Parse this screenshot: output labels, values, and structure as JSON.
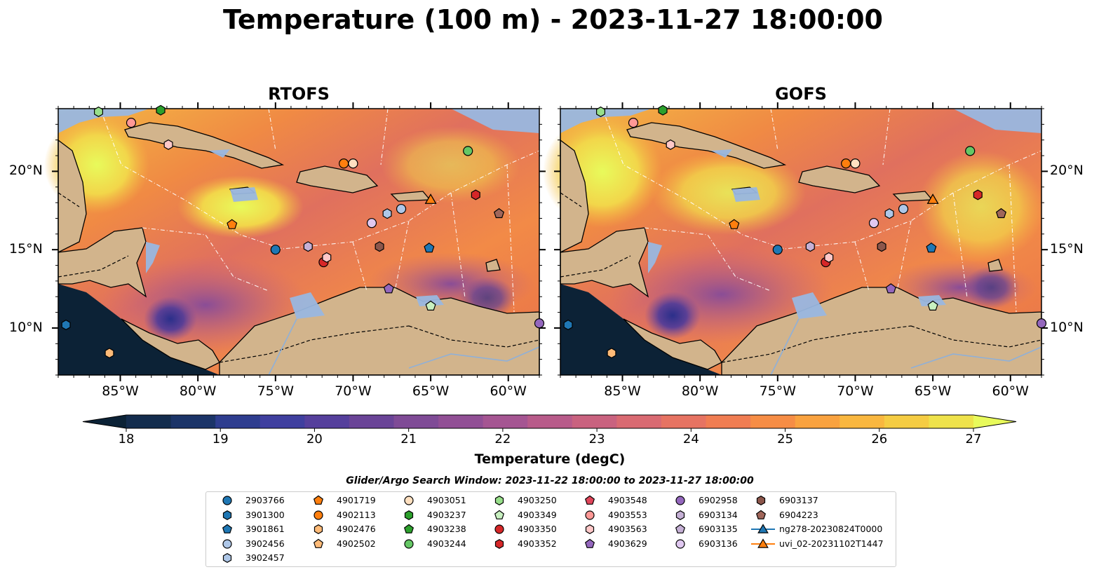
{
  "title": "Temperature (100 m) - 2023-11-27 18:00:00",
  "panels": [
    {
      "title": "RTOFS"
    },
    {
      "title": "GOFS"
    }
  ],
  "lon_ticks": [
    "85°W",
    "80°W",
    "75°W",
    "70°W",
    "65°W",
    "60°W"
  ],
  "lat_ticks": [
    "20°N",
    "15°N",
    "10°N"
  ],
  "map_extent": {
    "lon": [
      -89,
      -58
    ],
    "lat": [
      7,
      24
    ]
  },
  "colorbar": {
    "label": "Temperature (degC)",
    "ticks": [
      "18",
      "19",
      "20",
      "21",
      "22",
      "23",
      "24",
      "25",
      "26",
      "27"
    ],
    "range": [
      18,
      27
    ],
    "extend": "both",
    "colormap": "thermal",
    "colors": [
      "#0b2236",
      "#132c4d",
      "#1b3468",
      "#2e3d8f",
      "#3f3f9f",
      "#553f9c",
      "#6a4497",
      "#7f4b96",
      "#914f95",
      "#a55592",
      "#b85b8a",
      "#c9627f",
      "#d96a72",
      "#e67362",
      "#f07d52",
      "#f68d45",
      "#f9a23f",
      "#f9b73f",
      "#f5cc43",
      "#eee24b",
      "#e8fa5b"
    ]
  },
  "legend": {
    "title": "Glider/Argo Search Window: 2023-11-22 18:00:00 to 2023-11-27 18:00:00",
    "columns": [
      [
        {
          "label": "2903766",
          "marker": "circle",
          "color": "#1f77b4"
        },
        {
          "label": "3901300",
          "marker": "hexagon",
          "color": "#1f77b4"
        },
        {
          "label": "3901861",
          "marker": "pentagon",
          "color": "#1f77b4"
        },
        {
          "label": "3902456",
          "marker": "circle",
          "color": "#aec7e8"
        },
        {
          "label": "3902457",
          "marker": "hexagon",
          "color": "#aec7e8"
        }
      ],
      [
        {
          "label": "4901719",
          "marker": "pentagon",
          "color": "#ff7f0e"
        },
        {
          "label": "4902113",
          "marker": "circle",
          "color": "#ff7f0e"
        },
        {
          "label": "4902476",
          "marker": "hexagon",
          "color": "#ffbb78"
        },
        {
          "label": "4902502",
          "marker": "pentagon",
          "color": "#ffbb78"
        }
      ],
      [
        {
          "label": "4903051",
          "marker": "circle",
          "color": "#ffe0c0"
        },
        {
          "label": "4903237",
          "marker": "hexagon",
          "color": "#2ca02c"
        },
        {
          "label": "4903238",
          "marker": "pentagon",
          "color": "#2ca02c"
        },
        {
          "label": "4903244",
          "marker": "circle",
          "color": "#65c765"
        }
      ],
      [
        {
          "label": "4903250",
          "marker": "hexagon",
          "color": "#98df8a"
        },
        {
          "label": "4903349",
          "marker": "pentagon",
          "color": "#c8f0c0"
        },
        {
          "label": "4903350",
          "marker": "circle",
          "color": "#d62728"
        },
        {
          "label": "4903352",
          "marker": "hexagon",
          "color": "#d62728"
        }
      ],
      [
        {
          "label": "4903548",
          "marker": "pentagon",
          "color": "#e0455a"
        },
        {
          "label": "4903553",
          "marker": "circle",
          "color": "#ff9896"
        },
        {
          "label": "4903563",
          "marker": "hexagon",
          "color": "#ffc8c8"
        },
        {
          "label": "4903629",
          "marker": "pentagon",
          "color": "#9467bd"
        }
      ],
      [
        {
          "label": "6902958",
          "marker": "circle",
          "color": "#9467bd"
        },
        {
          "label": "6903134",
          "marker": "hexagon",
          "color": "#c5b0d5"
        },
        {
          "label": "6903135",
          "marker": "pentagon",
          "color": "#c5b0d5"
        },
        {
          "label": "6903136",
          "marker": "circle",
          "color": "#e0c8f0"
        }
      ],
      [
        {
          "label": "6903137",
          "marker": "hexagon",
          "color": "#8c564b"
        },
        {
          "label": "6904223",
          "marker": "pentagon",
          "color": "#a0665a"
        },
        {
          "label": "ng278-20230824T0000",
          "marker": "triangle-line",
          "color": "#1f77b4"
        },
        {
          "label": "uvi_02-20231102T1447",
          "marker": "triangle-line",
          "color": "#ff7f0e"
        }
      ]
    ]
  },
  "floats": [
    {
      "label": "2903766",
      "marker": "circle",
      "color": "#1f77b4",
      "lon": -75.0,
      "lat": 15.0
    },
    {
      "label": "3901300",
      "marker": "hexagon",
      "color": "#1f77b4",
      "lon": -88.5,
      "lat": 10.2
    },
    {
      "label": "3901861",
      "marker": "pentagon",
      "color": "#1f77b4",
      "lon": -65.1,
      "lat": 15.1
    },
    {
      "label": "3902456",
      "marker": "circle",
      "color": "#aec7e8",
      "lon": -66.9,
      "lat": 17.6
    },
    {
      "label": "3902457",
      "marker": "hexagon",
      "color": "#aec7e8",
      "lon": -67.8,
      "lat": 17.3
    },
    {
      "label": "4901719",
      "marker": "pentagon",
      "color": "#ff7f0e",
      "lon": -77.8,
      "lat": 16.6
    },
    {
      "label": "4902113",
      "marker": "circle",
      "color": "#ff7f0e",
      "lon": -70.6,
      "lat": 20.5
    },
    {
      "label": "4902476",
      "marker": "hexagon",
      "color": "#ffbb78",
      "lon": -85.7,
      "lat": 8.4
    },
    {
      "label": "4903051",
      "marker": "circle",
      "color": "#ffe0c0",
      "lon": -70.0,
      "lat": 20.5
    },
    {
      "label": "4903237",
      "marker": "hexagon",
      "color": "#2ca02c",
      "lon": -82.4,
      "lat": 23.9
    },
    {
      "label": "4903244",
      "marker": "circle",
      "color": "#65c765",
      "lon": -62.6,
      "lat": 21.3
    },
    {
      "label": "4903250",
      "marker": "hexagon",
      "color": "#98df8a",
      "lon": -86.4,
      "lat": 23.8
    },
    {
      "label": "4903349",
      "marker": "pentagon",
      "color": "#c8f0c0",
      "lon": -65.0,
      "lat": 11.4
    },
    {
      "label": "4903350",
      "marker": "circle",
      "color": "#d62728",
      "lon": -71.9,
      "lat": 14.2
    },
    {
      "label": "4903352",
      "marker": "hexagon",
      "color": "#d62728",
      "lon": -62.1,
      "lat": 18.5
    },
    {
      "label": "4903553",
      "marker": "circle",
      "color": "#ff9896",
      "lon": -84.3,
      "lat": 23.1
    },
    {
      "label": "4903563",
      "marker": "hexagon",
      "color": "#ffc8c8",
      "lon": -81.9,
      "lat": 21.7
    },
    {
      "label": "4903563",
      "marker": "hexagon",
      "color": "#ffc8c8",
      "lon": -71.7,
      "lat": 14.5
    },
    {
      "label": "4903629",
      "marker": "pentagon",
      "color": "#9467bd",
      "lon": -67.7,
      "lat": 12.5
    },
    {
      "label": "6902958",
      "marker": "circle",
      "color": "#9467bd",
      "lon": -58.0,
      "lat": 10.3
    },
    {
      "label": "6903134",
      "marker": "hexagon",
      "color": "#c5b0d5",
      "lon": -72.9,
      "lat": 15.2
    },
    {
      "label": "6903136",
      "marker": "circle",
      "color": "#e0c8f0",
      "lon": -68.8,
      "lat": 16.7
    },
    {
      "label": "6903137",
      "marker": "hexagon",
      "color": "#8c564b",
      "lon": -68.3,
      "lat": 15.2
    },
    {
      "label": "6904223",
      "marker": "pentagon",
      "color": "#a0665a",
      "lon": -60.6,
      "lat": 17.3
    },
    {
      "label": "ng278-20230824T0000",
      "marker": "triangle",
      "color": "#1f77b4",
      "lon": -65.0,
      "lat": 18.2
    },
    {
      "label": "uvi_02-20231102T1447",
      "marker": "triangle",
      "color": "#ff7f0e",
      "lon": -65.0,
      "lat": 18.2
    }
  ]
}
